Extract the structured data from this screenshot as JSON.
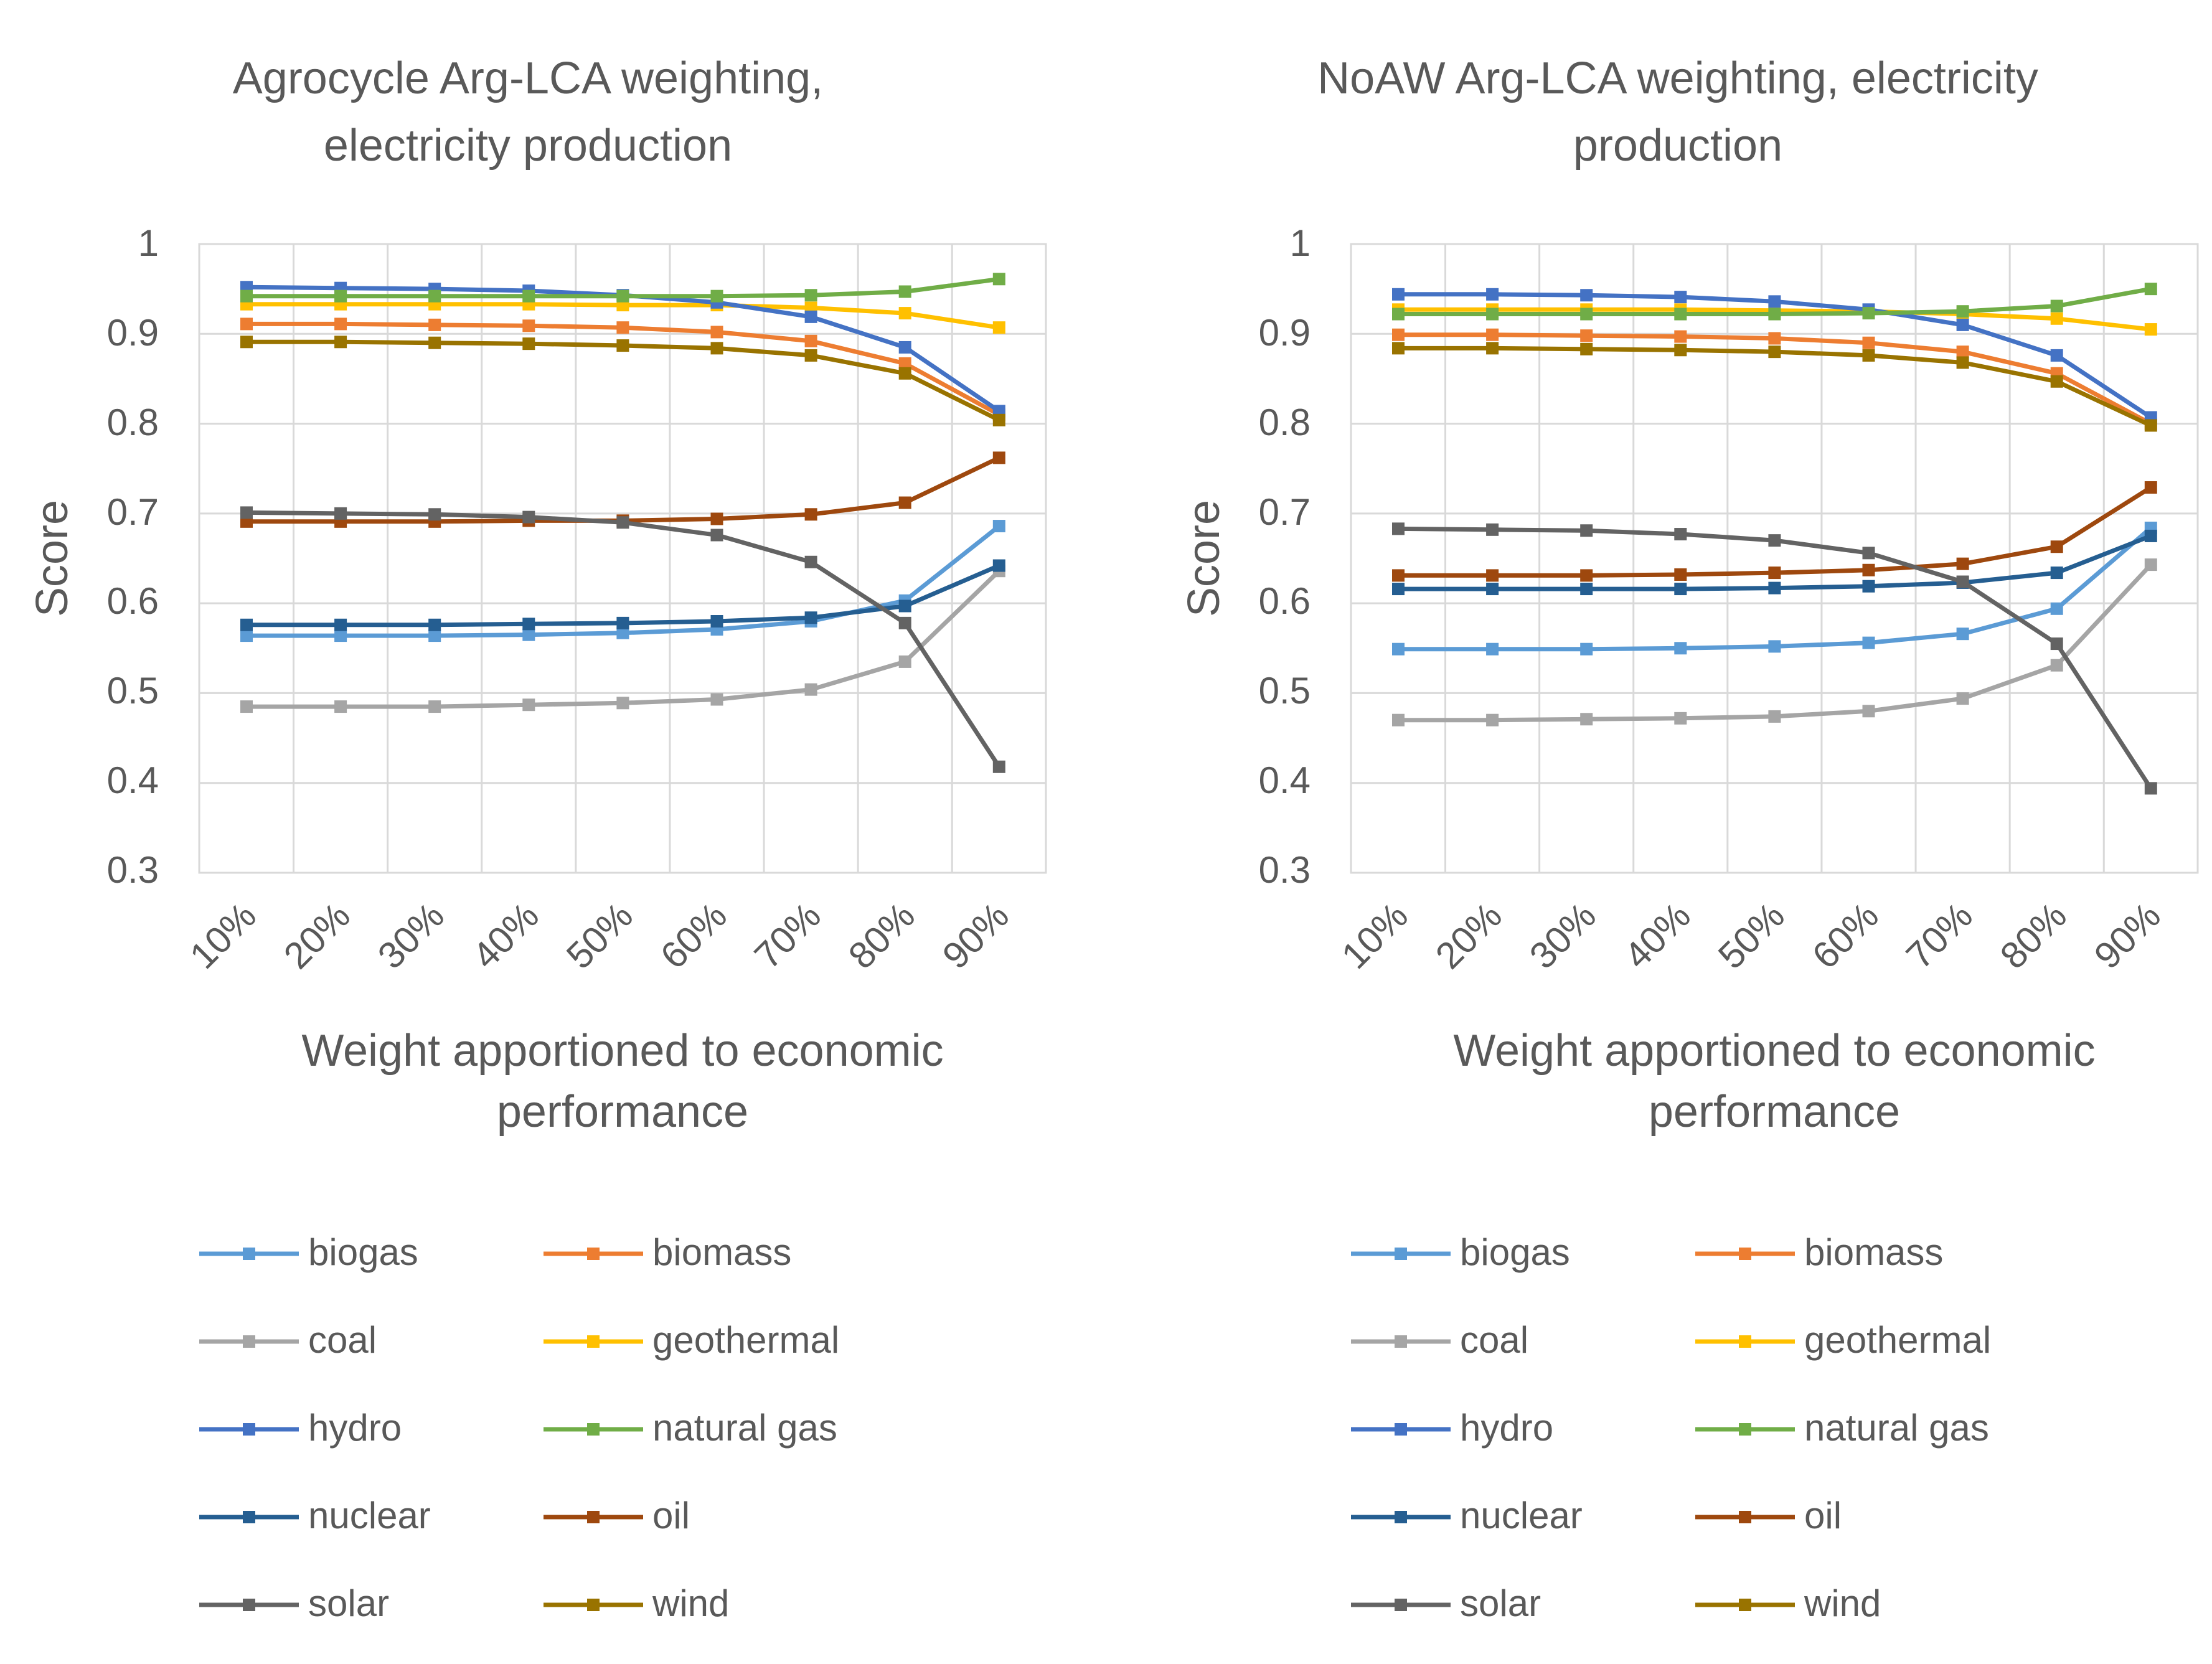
{
  "chart_data": [
    {
      "type": "line",
      "title_lines": [
        "Agrocycle Arg-LCA weighting,",
        "electricity production"
      ],
      "xlabel_lines": [
        "Weight apportioned to economic",
        "performance"
      ],
      "ylabel": "Score",
      "categories": [
        "10%",
        "20%",
        "30%",
        "40%",
        "50%",
        "60%",
        "70%",
        "80%",
        "90%"
      ],
      "y_ticks": [
        "1",
        "0.9",
        "0.8",
        "0.7",
        "0.6",
        "0.5",
        "0.4",
        "0.3"
      ],
      "ylim": [
        0.3,
        1.0
      ],
      "grid": "on",
      "legend_position": "bottom",
      "series": [
        {
          "name": "biogas",
          "color": "#5B9BD5",
          "values": [
            0.564,
            0.564,
            0.564,
            0.565,
            0.567,
            0.571,
            0.58,
            0.603,
            0.686
          ]
        },
        {
          "name": "biomass",
          "color": "#ED7D31",
          "values": [
            0.911,
            0.911,
            0.91,
            0.909,
            0.907,
            0.902,
            0.892,
            0.867,
            0.81
          ]
        },
        {
          "name": "coal",
          "color": "#A5A5A5",
          "values": [
            0.485,
            0.485,
            0.485,
            0.487,
            0.489,
            0.493,
            0.504,
            0.535,
            0.636
          ]
        },
        {
          "name": "geothermal",
          "color": "#FFC000",
          "values": [
            0.933,
            0.933,
            0.933,
            0.933,
            0.932,
            0.932,
            0.929,
            0.923,
            0.907
          ]
        },
        {
          "name": "hydro",
          "color": "#4472C4",
          "values": [
            0.952,
            0.951,
            0.95,
            0.948,
            0.943,
            0.935,
            0.919,
            0.885,
            0.814
          ]
        },
        {
          "name": "natural gas",
          "color": "#70AD47",
          "values": [
            0.942,
            0.942,
            0.942,
            0.942,
            0.942,
            0.942,
            0.943,
            0.947,
            0.961
          ]
        },
        {
          "name": "nuclear",
          "color": "#255E91",
          "values": [
            0.576,
            0.576,
            0.576,
            0.577,
            0.578,
            0.58,
            0.584,
            0.597,
            0.642
          ]
        },
        {
          "name": "oil",
          "color": "#9E480E",
          "values": [
            0.691,
            0.691,
            0.691,
            0.692,
            0.692,
            0.694,
            0.699,
            0.712,
            0.762
          ]
        },
        {
          "name": "solar",
          "color": "#636363",
          "values": [
            0.701,
            0.7,
            0.699,
            0.696,
            0.69,
            0.676,
            0.646,
            0.578,
            0.418
          ]
        },
        {
          "name": "wind",
          "color": "#997300",
          "values": [
            0.891,
            0.891,
            0.89,
            0.889,
            0.887,
            0.884,
            0.876,
            0.856,
            0.804
          ]
        }
      ]
    },
    {
      "type": "line",
      "title_lines": [
        "NoAW Arg-LCA weighting, electricity",
        "production"
      ],
      "xlabel_lines": [
        "Weight apportioned to economic",
        "performance"
      ],
      "ylabel": "Score",
      "categories": [
        "10%",
        "20%",
        "30%",
        "40%",
        "50%",
        "60%",
        "70%",
        "80%",
        "90%"
      ],
      "y_ticks": [
        "1",
        "0.9",
        "0.8",
        "0.7",
        "0.6",
        "0.5",
        "0.4",
        "0.3"
      ],
      "ylim": [
        0.3,
        1.0
      ],
      "grid": "on",
      "legend_position": "bottom",
      "series": [
        {
          "name": "biogas",
          "color": "#5B9BD5",
          "values": [
            0.549,
            0.549,
            0.549,
            0.55,
            0.552,
            0.556,
            0.566,
            0.594,
            0.684
          ]
        },
        {
          "name": "biomass",
          "color": "#ED7D31",
          "values": [
            0.899,
            0.899,
            0.898,
            0.897,
            0.895,
            0.89,
            0.88,
            0.856,
            0.8
          ]
        },
        {
          "name": "coal",
          "color": "#A5A5A5",
          "values": [
            0.47,
            0.47,
            0.471,
            0.472,
            0.474,
            0.48,
            0.494,
            0.531,
            0.643
          ]
        },
        {
          "name": "geothermal",
          "color": "#FFC000",
          "values": [
            0.927,
            0.927,
            0.927,
            0.927,
            0.926,
            0.925,
            0.922,
            0.917,
            0.905
          ]
        },
        {
          "name": "hydro",
          "color": "#4472C4",
          "values": [
            0.944,
            0.944,
            0.943,
            0.941,
            0.936,
            0.927,
            0.91,
            0.876,
            0.807
          ]
        },
        {
          "name": "natural gas",
          "color": "#70AD47",
          "values": [
            0.922,
            0.922,
            0.922,
            0.922,
            0.922,
            0.923,
            0.925,
            0.931,
            0.95
          ]
        },
        {
          "name": "nuclear",
          "color": "#255E91",
          "values": [
            0.616,
            0.616,
            0.616,
            0.616,
            0.617,
            0.619,
            0.623,
            0.634,
            0.675
          ]
        },
        {
          "name": "oil",
          "color": "#9E480E",
          "values": [
            0.631,
            0.631,
            0.631,
            0.632,
            0.634,
            0.637,
            0.644,
            0.663,
            0.729
          ]
        },
        {
          "name": "solar",
          "color": "#636363",
          "values": [
            0.683,
            0.682,
            0.681,
            0.677,
            0.67,
            0.656,
            0.624,
            0.555,
            0.394
          ]
        },
        {
          "name": "wind",
          "color": "#997300",
          "values": [
            0.884,
            0.884,
            0.883,
            0.882,
            0.88,
            0.876,
            0.868,
            0.847,
            0.798
          ]
        }
      ]
    }
  ]
}
